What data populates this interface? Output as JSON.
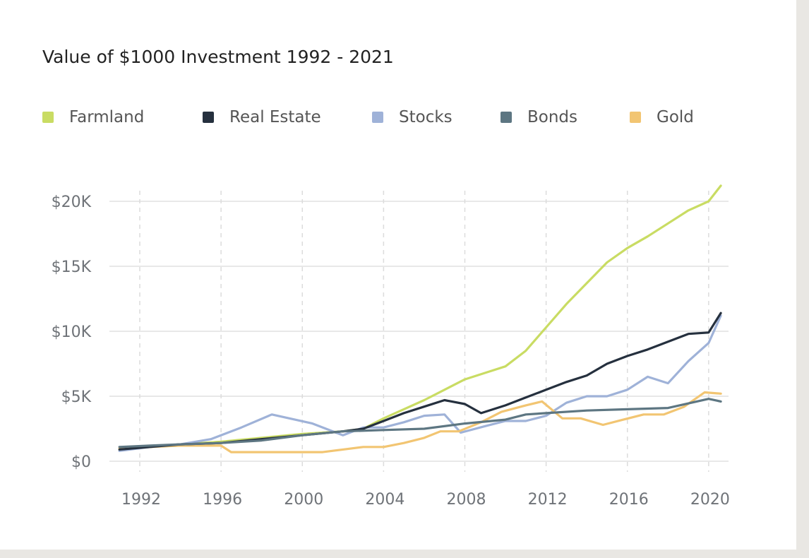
{
  "chart_data": {
    "type": "line",
    "title": "Value of $1000 Investment 1992 - 2021",
    "xlabel": "",
    "ylabel": "",
    "xlim": [
      1991,
      2021
    ],
    "ylim": [
      0,
      20000
    ],
    "grid": true,
    "legend_position": "top",
    "x_ticks": [
      1992,
      1996,
      2000,
      2004,
      2008,
      2012,
      2016,
      2020
    ],
    "x_tick_labels": [
      "1992",
      "1996",
      "2000",
      "2004",
      "2008",
      "2012",
      "2016",
      "2020"
    ],
    "y_ticks": [
      0,
      5000,
      10000,
      15000,
      20000
    ],
    "y_tick_labels": [
      "$0",
      "$5K",
      "$10K",
      "$15K",
      "$20K"
    ],
    "series": [
      {
        "name": "Farmland",
        "color": "#c9dc63",
        "points": [
          [
            1991,
            900
          ],
          [
            1992.5,
            1100
          ],
          [
            1994,
            1300
          ],
          [
            1996,
            1500
          ],
          [
            1998,
            1800
          ],
          [
            2000,
            2100
          ],
          [
            2002,
            2300
          ],
          [
            2003,
            2500
          ],
          [
            2004,
            3300
          ],
          [
            2005,
            4000
          ],
          [
            2006,
            4700
          ],
          [
            2007,
            5500
          ],
          [
            2008,
            6300
          ],
          [
            2009,
            6800
          ],
          [
            2010,
            7300
          ],
          [
            2011,
            8500
          ],
          [
            2012,
            10300
          ],
          [
            2013,
            12100
          ],
          [
            2014,
            13700
          ],
          [
            2015,
            15300
          ],
          [
            2016,
            16400
          ],
          [
            2017,
            17300
          ],
          [
            2018,
            18300
          ],
          [
            2019,
            19300
          ],
          [
            2020,
            20000
          ],
          [
            2020.6,
            21200
          ]
        ]
      },
      {
        "name": "Real Estate",
        "color": "#25303e",
        "points": [
          [
            1991,
            900
          ],
          [
            1992.5,
            1100
          ],
          [
            1994,
            1300
          ],
          [
            1996,
            1400
          ],
          [
            1998,
            1700
          ],
          [
            2000,
            2000
          ],
          [
            2002,
            2300
          ],
          [
            2003,
            2500
          ],
          [
            2004,
            3100
          ],
          [
            2005,
            3700
          ],
          [
            2006,
            4200
          ],
          [
            2007,
            4700
          ],
          [
            2008,
            4400
          ],
          [
            2008.8,
            3700
          ],
          [
            2010,
            4300
          ],
          [
            2011,
            4900
          ],
          [
            2012,
            5500
          ],
          [
            2013,
            6100
          ],
          [
            2014,
            6600
          ],
          [
            2015,
            7500
          ],
          [
            2016,
            8100
          ],
          [
            2017,
            8600
          ],
          [
            2018,
            9200
          ],
          [
            2019,
            9800
          ],
          [
            2020,
            9900
          ],
          [
            2020.6,
            11400
          ]
        ]
      },
      {
        "name": "Stocks",
        "color": "#9fb2d8",
        "points": [
          [
            1991,
            800
          ],
          [
            1992.5,
            1100
          ],
          [
            1994,
            1300
          ],
          [
            1995.5,
            1700
          ],
          [
            1997,
            2600
          ],
          [
            1998.5,
            3600
          ],
          [
            2000.5,
            2900
          ],
          [
            2002,
            2000
          ],
          [
            2003,
            2600
          ],
          [
            2004,
            2600
          ],
          [
            2005,
            3000
          ],
          [
            2006,
            3500
          ],
          [
            2007,
            3600
          ],
          [
            2007.8,
            2200
          ],
          [
            2009,
            2700
          ],
          [
            2010,
            3100
          ],
          [
            2011,
            3100
          ],
          [
            2012,
            3500
          ],
          [
            2013,
            4500
          ],
          [
            2014,
            5000
          ],
          [
            2015,
            5000
          ],
          [
            2016,
            5500
          ],
          [
            2017,
            6500
          ],
          [
            2018,
            6000
          ],
          [
            2019,
            7700
          ],
          [
            2020,
            9100
          ],
          [
            2020.6,
            11200
          ]
        ]
      },
      {
        "name": "Bonds",
        "color": "#5d7682",
        "points": [
          [
            1991,
            1100
          ],
          [
            1992.5,
            1200
          ],
          [
            1994,
            1300
          ],
          [
            1996,
            1400
          ],
          [
            1998,
            1600
          ],
          [
            2000,
            2000
          ],
          [
            2002,
            2300
          ],
          [
            2004,
            2400
          ],
          [
            2006,
            2500
          ],
          [
            2008,
            2900
          ],
          [
            2010,
            3200
          ],
          [
            2011,
            3600
          ],
          [
            2012,
            3700
          ],
          [
            2014,
            3900
          ],
          [
            2016,
            4000
          ],
          [
            2018,
            4100
          ],
          [
            2020,
            4800
          ],
          [
            2020.6,
            4600
          ]
        ]
      },
      {
        "name": "Gold",
        "color": "#f2c572",
        "points": [
          [
            1991,
            1000
          ],
          [
            1992.5,
            1100
          ],
          [
            1994,
            1200
          ],
          [
            1996,
            1200
          ],
          [
            1996.5,
            700
          ],
          [
            1998,
            700
          ],
          [
            2000,
            700
          ],
          [
            2001,
            700
          ],
          [
            2002,
            900
          ],
          [
            2003,
            1100
          ],
          [
            2004,
            1100
          ],
          [
            2005,
            1400
          ],
          [
            2006,
            1800
          ],
          [
            2006.8,
            2300
          ],
          [
            2007.7,
            2300
          ],
          [
            2008.8,
            3000
          ],
          [
            2009.8,
            3800
          ],
          [
            2011,
            4300
          ],
          [
            2011.8,
            4600
          ],
          [
            2012.8,
            3300
          ],
          [
            2013.7,
            3300
          ],
          [
            2014.8,
            2800
          ],
          [
            2015.8,
            3200
          ],
          [
            2016.8,
            3600
          ],
          [
            2017.8,
            3600
          ],
          [
            2018.8,
            4200
          ],
          [
            2019.8,
            5300
          ],
          [
            2020.6,
            5200
          ]
        ]
      }
    ]
  }
}
